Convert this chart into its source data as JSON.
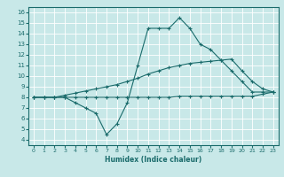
{
  "xlabel": "Humidex (Indice chaleur)",
  "bg_color": "#c8e8e8",
  "grid_color": "#ffffff",
  "line_color": "#1a6b6b",
  "x_ticks": [
    0,
    1,
    2,
    3,
    4,
    5,
    6,
    7,
    8,
    9,
    10,
    11,
    12,
    13,
    14,
    15,
    16,
    17,
    18,
    19,
    20,
    21,
    22,
    23
  ],
  "y_ticks": [
    4,
    5,
    6,
    7,
    8,
    9,
    10,
    11,
    12,
    13,
    14,
    15,
    16
  ],
  "ylim": [
    3.5,
    16.5
  ],
  "xlim": [
    -0.5,
    23.5
  ],
  "line1_x": [
    0,
    1,
    2,
    3,
    4,
    5,
    6,
    7,
    8,
    9,
    10,
    11,
    12,
    13,
    14,
    15,
    16,
    17,
    18,
    19,
    20,
    21,
    22,
    23
  ],
  "line1_y": [
    8.0,
    8.0,
    8.0,
    8.0,
    7.5,
    7.0,
    6.5,
    4.5,
    5.5,
    7.5,
    11.0,
    14.5,
    14.5,
    14.5,
    15.5,
    14.5,
    13.0,
    12.5,
    11.5,
    10.5,
    9.5,
    8.5,
    8.5,
    8.5
  ],
  "line2_x": [
    0,
    1,
    2,
    3,
    4,
    5,
    6,
    7,
    8,
    9,
    10,
    11,
    12,
    13,
    14,
    15,
    16,
    17,
    18,
    19,
    20,
    21,
    22,
    23
  ],
  "line2_y": [
    8.0,
    8.0,
    8.0,
    8.2,
    8.4,
    8.6,
    8.8,
    9.0,
    9.2,
    9.5,
    9.8,
    10.2,
    10.5,
    10.8,
    11.0,
    11.2,
    11.3,
    11.4,
    11.5,
    11.6,
    10.5,
    9.5,
    8.8,
    8.5
  ],
  "line3_x": [
    0,
    1,
    2,
    3,
    4,
    5,
    6,
    7,
    8,
    9,
    10,
    11,
    12,
    13,
    14,
    15,
    16,
    17,
    18,
    19,
    20,
    21,
    22,
    23
  ],
  "line3_y": [
    8.0,
    8.0,
    8.0,
    8.0,
    8.0,
    8.0,
    8.0,
    8.0,
    8.0,
    8.0,
    8.0,
    8.0,
    8.0,
    8.0,
    8.1,
    8.1,
    8.1,
    8.1,
    8.1,
    8.1,
    8.1,
    8.1,
    8.3,
    8.5
  ],
  "xlabel_fontsize": 5.5,
  "tick_fontsize_x": 4.5,
  "tick_fontsize_y": 5.0
}
